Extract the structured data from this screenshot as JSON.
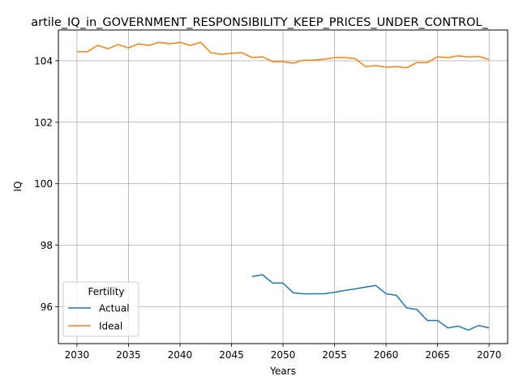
{
  "chart_data": {
    "type": "line",
    "title": "artile_IQ_in_GOVERNMENT_RESPONSIBILITY_KEEP_PRICES_UNDER_CONTROL_",
    "xlabel": "Years",
    "ylabel": "IQ",
    "xlim": [
      2028.2,
      2071.8
    ],
    "ylim": [
      94.8,
      105.0
    ],
    "x_ticks": [
      2030,
      2035,
      2040,
      2045,
      2050,
      2055,
      2060,
      2065,
      2070
    ],
    "y_ticks": [
      96,
      98,
      100,
      102,
      104
    ],
    "grid": true,
    "legend": {
      "title": "Fertility",
      "placement": "lower-left"
    },
    "series": [
      {
        "name": "Actual",
        "color": "#1f77b4",
        "x": [
          2047,
          2048,
          2049,
          2050,
          2051,
          2052,
          2053,
          2054,
          2055,
          2056,
          2057,
          2058,
          2059,
          2060,
          2061,
          2062,
          2063,
          2064,
          2065,
          2066,
          2067,
          2068,
          2069,
          2070
        ],
        "y": [
          96.98,
          97.04,
          96.77,
          96.77,
          96.45,
          96.42,
          96.42,
          96.42,
          96.47,
          96.53,
          96.58,
          96.64,
          96.69,
          96.42,
          96.37,
          95.96,
          95.91,
          95.55,
          95.55,
          95.31,
          95.37,
          95.24,
          95.39,
          95.31
        ]
      },
      {
        "name": "Ideal",
        "color": "#ff7f0e",
        "x": [
          2030,
          2031,
          2032,
          2033,
          2034,
          2035,
          2036,
          2037,
          2038,
          2039,
          2040,
          2041,
          2042,
          2043,
          2044,
          2045,
          2046,
          2047,
          2048,
          2049,
          2050,
          2051,
          2052,
          2053,
          2054,
          2055,
          2056,
          2057,
          2058,
          2059,
          2060,
          2061,
          2062,
          2063,
          2064,
          2065,
          2066,
          2067,
          2068,
          2069,
          2070
        ],
        "y": [
          104.29,
          104.29,
          104.5,
          104.39,
          104.52,
          104.42,
          104.55,
          104.5,
          104.6,
          104.55,
          104.6,
          104.5,
          104.6,
          104.26,
          104.21,
          104.24,
          104.26,
          104.1,
          104.13,
          103.97,
          103.97,
          103.92,
          104.02,
          104.02,
          104.05,
          104.1,
          104.1,
          104.07,
          103.81,
          103.84,
          103.79,
          103.81,
          103.77,
          103.94,
          103.94,
          104.13,
          104.1,
          104.16,
          104.12,
          104.14,
          104.04
        ]
      }
    ]
  }
}
